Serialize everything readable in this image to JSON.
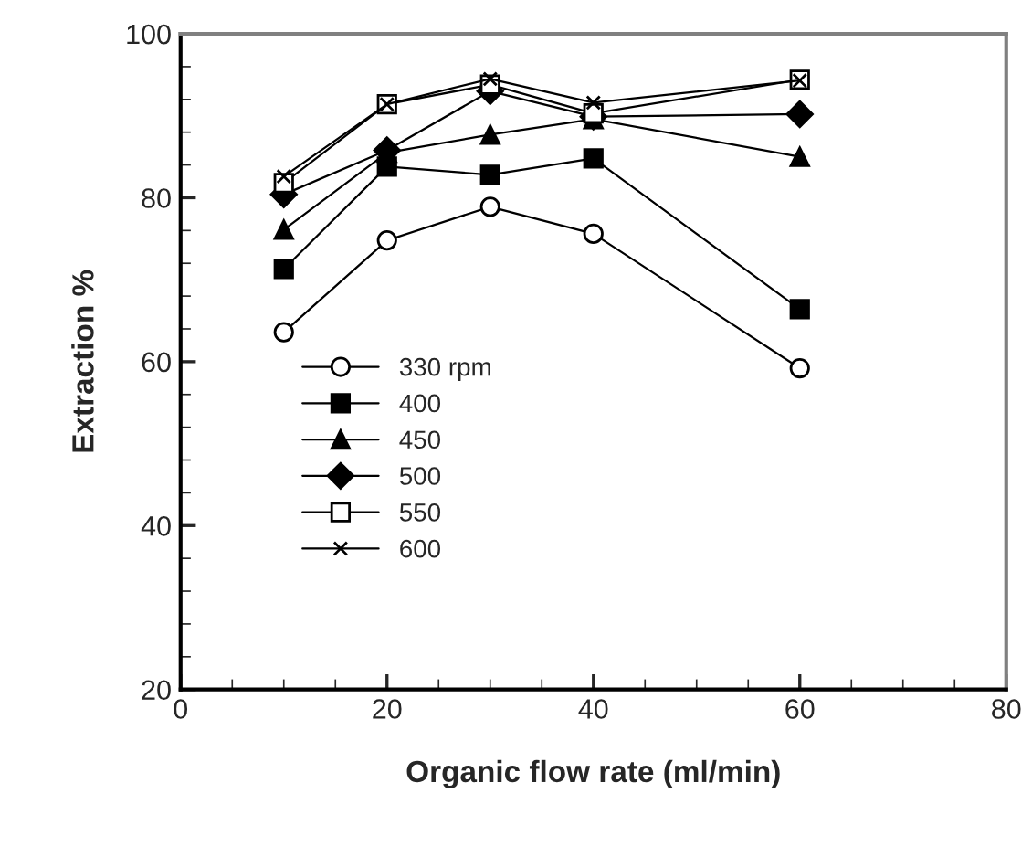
{
  "chart_data": {
    "type": "line",
    "xlabel": "Organic flow rate (ml/min)",
    "ylabel": "Extraction %",
    "x": [
      10,
      20,
      30,
      40,
      60
    ],
    "series": [
      {
        "name": "330 rpm",
        "color": "#000000",
        "marker": "circle",
        "values": [
          63.6,
          74.8,
          78.9,
          75.6,
          59.2
        ]
      },
      {
        "name": "400",
        "color": "#000000",
        "marker": "square",
        "values": [
          71.3,
          83.8,
          82.8,
          84.8,
          66.4
        ]
      },
      {
        "name": "450",
        "color": "#000000",
        "marker": "triangle",
        "values": [
          76.1,
          85.5,
          87.7,
          89.6,
          85.0
        ]
      },
      {
        "name": "500",
        "color": "#000000",
        "marker": "diamond",
        "values": [
          80.4,
          85.8,
          93.0,
          89.9,
          90.2
        ]
      },
      {
        "name": "550",
        "color": "#000000",
        "marker": "square",
        "values": [
          81.8,
          91.4,
          93.8,
          90.3,
          94.4
        ]
      },
      {
        "name": "600",
        "color": "#000000",
        "marker": "cross",
        "values": [
          82.6,
          91.4,
          94.5,
          91.6,
          94.3
        ]
      }
    ],
    "xlim": [
      0,
      80
    ],
    "xticks": [
      0,
      20,
      40,
      60,
      80
    ],
    "ylim": [
      20,
      100
    ],
    "yticks": [
      20,
      40,
      60,
      80,
      100
    ],
    "grid": false,
    "legend": "center left",
    "line_style": "solid"
  }
}
